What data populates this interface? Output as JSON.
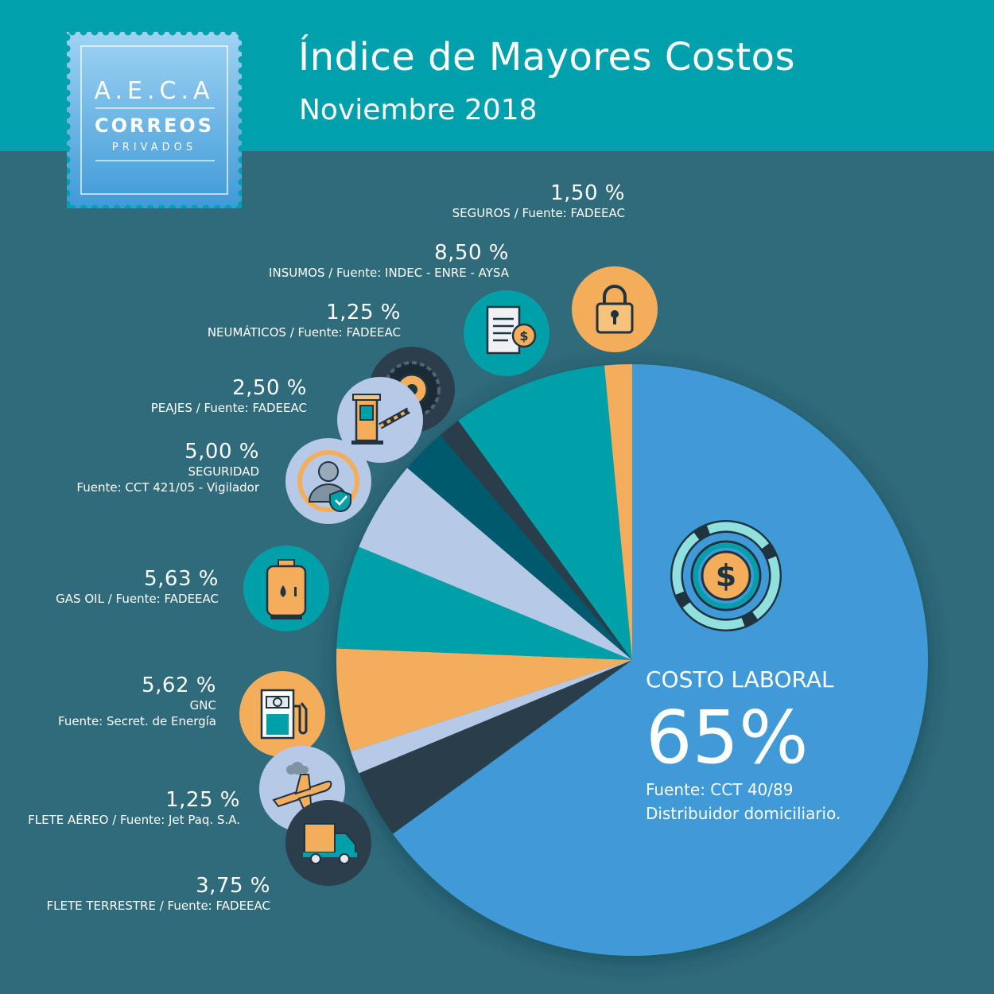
{
  "title": "Índice de Mayores Costos",
  "subtitle": "Noviembre 2018",
  "logo": {
    "line1": "A.E.C.A",
    "line2": "CORREOS",
    "line3": "PRIVADOS"
  },
  "colors": {
    "header": "#00a0ac",
    "background": "#2f6b7b",
    "blue": "#3f9ad7",
    "orange": "#f4ad5b",
    "teal": "#00a0a8",
    "lightblue": "#b6c9e6",
    "dark": "#2c3e4c",
    "darkteal": "#005a6e"
  },
  "chart_data": {
    "type": "pie",
    "title": "Índice de Mayores Costos",
    "subtitle": "Noviembre 2018",
    "unit": "%",
    "slices": [
      {
        "category": "COSTO LABORAL",
        "value": 65,
        "display": "65%",
        "source_lines": [
          "Fuente: CCT 40/89",
          "Distribuidor domiciliario."
        ],
        "color": "#3f9ad7",
        "icon": "dollar-coin-icon"
      },
      {
        "category": "FLETE TERRESTRE",
        "value": 3.75,
        "display": "3,75 %",
        "source_lines": [
          "FLETE TERRESTRE / Fuente: FADEEAC"
        ],
        "color": "#2c3e4c",
        "icon": "truck-icon"
      },
      {
        "category": "FLETE AÉREO",
        "value": 1.25,
        "display": "1,25 %",
        "source_lines": [
          "FLETE AÉREO / Fuente: Jet Paq. S.A."
        ],
        "color": "#b6c9e6",
        "icon": "airplane-icon"
      },
      {
        "category": "GNC",
        "value": 5.62,
        "display": "5,62 %",
        "source_lines": [
          "GNC",
          "Fuente: Secret. de Energía"
        ],
        "color": "#f4ad5b",
        "icon": "fuel-pump-icon"
      },
      {
        "category": "GAS OIL",
        "value": 5.63,
        "display": "5,63 %",
        "source_lines": [
          "GAS OIL / Fuente: FADEEAC"
        ],
        "color": "#00a0a8",
        "icon": "gas-cylinder-icon"
      },
      {
        "category": "SEGURIDAD",
        "value": 5,
        "display": "5,00 %",
        "source_lines": [
          "SEGURIDAD",
          "Fuente: CCT 421/05 - Vigilador"
        ],
        "color": "#b6c9e6",
        "icon": "security-guard-icon"
      },
      {
        "category": "PEAJES",
        "value": 2.5,
        "display": "2,50 %",
        "source_lines": [
          "PEAJES / Fuente: FADEEAC"
        ],
        "color": "#005a6e",
        "icon": "toll-booth-icon"
      },
      {
        "category": "NEUMÁTICOS",
        "value": 1.25,
        "display": "1,25 %",
        "source_lines": [
          "NEUMÁTICOS  / Fuente: FADEEAC"
        ],
        "color": "#2c3e4c",
        "icon": "tire-icon"
      },
      {
        "category": "INSUMOS",
        "value": 8.5,
        "display": "8,50 %",
        "source_lines": [
          "INSUMOS / Fuente: INDEC - ENRE - AYSA"
        ],
        "color": "#00a0a8",
        "icon": "invoice-icon"
      },
      {
        "category": "SEGUROS",
        "value": 1.5,
        "display": "1,50 %",
        "source_lines": [
          "SEGUROS / Fuente: FADEEAC"
        ],
        "color": "#f4ad5b",
        "icon": "padlock-icon"
      }
    ]
  }
}
